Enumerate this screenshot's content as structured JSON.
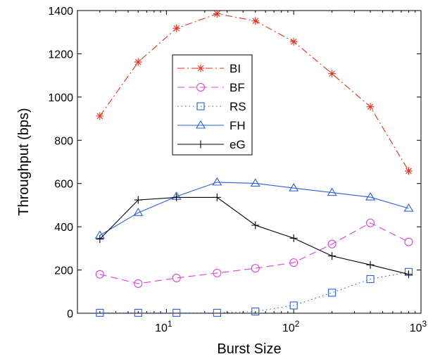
{
  "chart_data": {
    "type": "line",
    "title": "",
    "xlabel": "Burst Size",
    "ylabel": "Throughput (bps)",
    "xscale": "log",
    "xlim": [
      2,
      1000
    ],
    "ylim": [
      0,
      1400
    ],
    "x_ticks": [
      {
        "value": 10,
        "base": "10",
        "exp": "1"
      },
      {
        "value": 100,
        "base": "10",
        "exp": "2"
      },
      {
        "value": 1000,
        "base": "10",
        "exp": "3"
      }
    ],
    "y_ticks": [
      0,
      200,
      400,
      600,
      800,
      1000,
      1200,
      1400
    ],
    "grid": false,
    "legend_position": "upper-center",
    "x": [
      3,
      6,
      12,
      25,
      50,
      100,
      200,
      400,
      800
    ],
    "series": [
      {
        "name": "BI",
        "color": "#e8321e",
        "dash": "dash-dot",
        "marker": "asterisk",
        "values": [
          912,
          1162,
          1318,
          1385,
          1352,
          1256,
          1108,
          955,
          658
        ]
      },
      {
        "name": "BF",
        "color": "#e040e0",
        "dash": "dashed",
        "marker": "circle",
        "values": [
          180,
          137,
          163,
          186,
          208,
          234,
          320,
          418,
          330
        ]
      },
      {
        "name": "RS",
        "color": "#2a5fd8",
        "dash": "dotted",
        "marker": "square",
        "values": [
          2,
          2,
          2,
          2,
          8,
          36,
          95,
          158,
          191
        ]
      },
      {
        "name": "FH",
        "color": "#2a5fd8",
        "dash": "solid",
        "marker": "triangle",
        "values": [
          360,
          465,
          540,
          606,
          601,
          579,
          558,
          537,
          485
        ]
      },
      {
        "name": "eG",
        "color": "#000000",
        "dash": "solid",
        "marker": "plus",
        "values": [
          343,
          524,
          536,
          536,
          407,
          347,
          265,
          224,
          180
        ]
      }
    ]
  }
}
